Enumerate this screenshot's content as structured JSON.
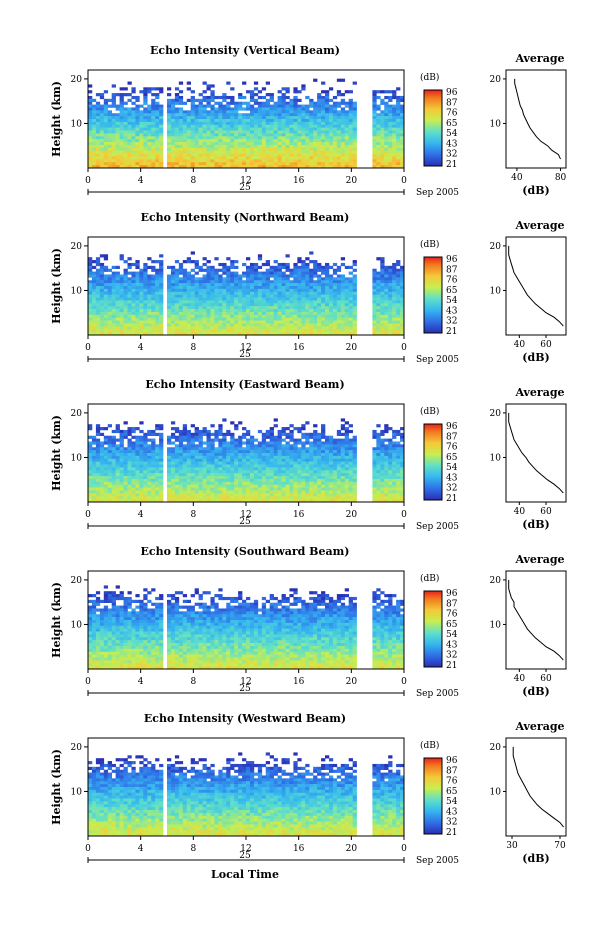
{
  "page": {
    "xlabel": "Local Time"
  },
  "colorbar": {
    "unit": "(dB)",
    "ticks": [
      "96",
      "87",
      "76",
      "65",
      "54",
      "43",
      "32",
      "21"
    ]
  },
  "chart_data": [
    {
      "type": "heatmap",
      "title": "Echo Intensity (Vertical Beam)",
      "ylabel": "Height (km)",
      "y_ticks": [
        "20",
        "10"
      ],
      "x_ticks": [
        "0",
        "4",
        "8",
        "12",
        "16",
        "20",
        "0"
      ],
      "date_day": "25",
      "date_label": "Sep 2005",
      "colorbar_unit": "(dB)",
      "colorbar_ticks": [
        "96",
        "87",
        "76",
        "65",
        "54",
        "43",
        "32",
        "21"
      ],
      "profile": {
        "title": "Average",
        "xlabel": "(dB)",
        "x_ticks": [
          "40",
          "80"
        ],
        "y_ticks": [
          "20",
          "10"
        ],
        "xlim": [
          30,
          85
        ],
        "points": [
          [
            80,
            2
          ],
          [
            78,
            3
          ],
          [
            72,
            4
          ],
          [
            68,
            5
          ],
          [
            62,
            6
          ],
          [
            58,
            7
          ],
          [
            55,
            8
          ],
          [
            52,
            9
          ],
          [
            50,
            10
          ],
          [
            48,
            11
          ],
          [
            46,
            12
          ],
          [
            45,
            13
          ],
          [
            43,
            14
          ],
          [
            42,
            15
          ],
          [
            41,
            16
          ],
          [
            40,
            17
          ],
          [
            39,
            18
          ],
          [
            38,
            19
          ],
          [
            38,
            20
          ]
        ]
      }
    },
    {
      "type": "heatmap",
      "title": "Echo Intensity (Northward Beam)",
      "ylabel": "Height (km)",
      "y_ticks": [
        "20",
        "10"
      ],
      "x_ticks": [
        "0",
        "4",
        "8",
        "12",
        "16",
        "20",
        "0"
      ],
      "date_day": "25",
      "date_label": "Sep 2005",
      "colorbar_unit": "(dB)",
      "colorbar_ticks": [
        "96",
        "87",
        "76",
        "65",
        "54",
        "43",
        "32",
        "21"
      ],
      "profile": {
        "title": "Average",
        "xlabel": "(dB)",
        "x_ticks": [
          "40",
          "60"
        ],
        "y_ticks": [
          "20",
          "10"
        ],
        "xlim": [
          30,
          75
        ],
        "points": [
          [
            73,
            2
          ],
          [
            70,
            3
          ],
          [
            66,
            4
          ],
          [
            60,
            5
          ],
          [
            56,
            6
          ],
          [
            52,
            7
          ],
          [
            49,
            8
          ],
          [
            46,
            9
          ],
          [
            44,
            10
          ],
          [
            42,
            11
          ],
          [
            40,
            12
          ],
          [
            38,
            13
          ],
          [
            36,
            14
          ],
          [
            35,
            15
          ],
          [
            34,
            16
          ],
          [
            33,
            17
          ],
          [
            32,
            18
          ],
          [
            32,
            19
          ],
          [
            32,
            20
          ]
        ]
      }
    },
    {
      "type": "heatmap",
      "title": "Echo Intensity (Eastward Beam)",
      "ylabel": "Height (km)",
      "y_ticks": [
        "20",
        "10"
      ],
      "x_ticks": [
        "0",
        "4",
        "8",
        "12",
        "16",
        "20",
        "0"
      ],
      "date_day": "25",
      "date_label": "Sep 2005",
      "colorbar_unit": "(dB)",
      "colorbar_ticks": [
        "96",
        "87",
        "76",
        "65",
        "54",
        "43",
        "32",
        "21"
      ],
      "profile": {
        "title": "Average",
        "xlabel": "(dB)",
        "x_ticks": [
          "40",
          "60"
        ],
        "y_ticks": [
          "20",
          "10"
        ],
        "xlim": [
          30,
          75
        ],
        "points": [
          [
            73,
            2
          ],
          [
            70,
            3
          ],
          [
            66,
            4
          ],
          [
            61,
            5
          ],
          [
            57,
            6
          ],
          [
            53,
            7
          ],
          [
            50,
            8
          ],
          [
            47,
            9
          ],
          [
            45,
            10
          ],
          [
            42,
            11
          ],
          [
            40,
            12
          ],
          [
            38,
            13
          ],
          [
            36,
            14
          ],
          [
            35,
            15
          ],
          [
            34,
            16
          ],
          [
            33,
            17
          ],
          [
            32,
            18
          ],
          [
            32,
            19
          ],
          [
            32,
            20
          ]
        ]
      }
    },
    {
      "type": "heatmap",
      "title": "Echo Intensity (Southward Beam)",
      "ylabel": "Height (km)",
      "y_ticks": [
        "20",
        "10"
      ],
      "x_ticks": [
        "0",
        "4",
        "8",
        "12",
        "16",
        "20",
        "0"
      ],
      "date_day": "25",
      "date_label": "Sep 2005",
      "colorbar_unit": "(dB)",
      "colorbar_ticks": [
        "96",
        "87",
        "76",
        "65",
        "54",
        "43",
        "32",
        "21"
      ],
      "profile": {
        "title": "Average",
        "xlabel": "(dB)",
        "x_ticks": [
          "40",
          "60"
        ],
        "y_ticks": [
          "20",
          "10"
        ],
        "xlim": [
          30,
          75
        ],
        "points": [
          [
            73,
            2
          ],
          [
            70,
            3
          ],
          [
            66,
            4
          ],
          [
            60,
            5
          ],
          [
            56,
            6
          ],
          [
            52,
            7
          ],
          [
            49,
            8
          ],
          [
            46,
            9
          ],
          [
            44,
            10
          ],
          [
            42,
            11
          ],
          [
            40,
            12
          ],
          [
            38,
            13
          ],
          [
            36,
            14
          ],
          [
            36,
            15
          ],
          [
            34,
            16
          ],
          [
            33,
            17
          ],
          [
            32,
            18
          ],
          [
            32,
            19
          ],
          [
            32,
            20
          ]
        ]
      }
    },
    {
      "type": "heatmap",
      "title": "Echo Intensity (Westward Beam)",
      "ylabel": "Height (km)",
      "y_ticks": [
        "20",
        "10"
      ],
      "x_ticks": [
        "0",
        "4",
        "8",
        "12",
        "16",
        "20",
        "0"
      ],
      "date_day": "25",
      "date_label": "Sep 2005",
      "colorbar_unit": "(dB)",
      "colorbar_ticks": [
        "96",
        "87",
        "76",
        "65",
        "54",
        "43",
        "32",
        "21"
      ],
      "profile": {
        "title": "Average",
        "xlabel": "(dB)",
        "x_ticks": [
          "30",
          "70"
        ],
        "y_ticks": [
          "20",
          "10"
        ],
        "xlim": [
          25,
          75
        ],
        "points": [
          [
            73,
            2
          ],
          [
            70,
            3
          ],
          [
            65,
            4
          ],
          [
            60,
            5
          ],
          [
            55,
            6
          ],
          [
            51,
            7
          ],
          [
            48,
            8
          ],
          [
            45,
            9
          ],
          [
            43,
            10
          ],
          [
            41,
            11
          ],
          [
            39,
            12
          ],
          [
            37,
            13
          ],
          [
            35,
            14
          ],
          [
            34,
            15
          ],
          [
            33,
            16
          ],
          [
            32,
            17
          ],
          [
            31,
            18
          ],
          [
            31,
            19
          ],
          [
            31,
            20
          ]
        ]
      }
    }
  ]
}
